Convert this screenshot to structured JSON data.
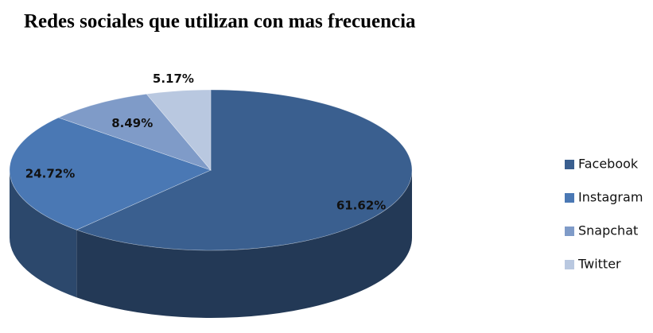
{
  "chart_data": {
    "type": "pie",
    "title": "Redes sociales que utilizan con mas frecuencia",
    "categories": [
      "Facebook",
      "Instagram",
      "Snapchat",
      "Twitter"
    ],
    "values": [
      61.62,
      24.72,
      8.49,
      5.17
    ],
    "value_labels": [
      "61.62%",
      "24.72%",
      "8.49%",
      "5.17%"
    ],
    "colors": [
      "#3a5f8f",
      "#4a78b4",
      "#7f9bc8",
      "#b9c8e0"
    ],
    "legend": "right"
  }
}
